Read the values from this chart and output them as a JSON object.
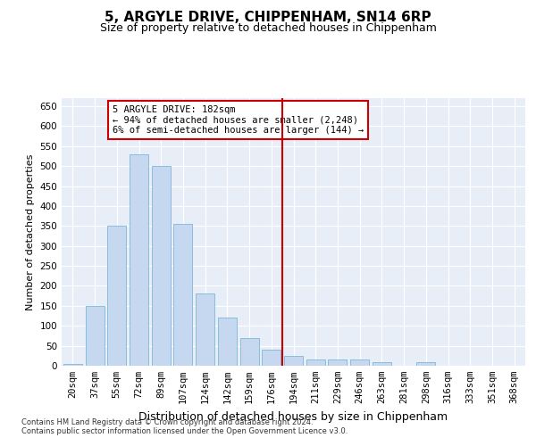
{
  "title": "5, ARGYLE DRIVE, CHIPPENHAM, SN14 6RP",
  "subtitle": "Size of property relative to detached houses in Chippenham",
  "xlabel": "Distribution of detached houses by size in Chippenham",
  "ylabel": "Number of detached properties",
  "categories": [
    "20sqm",
    "37sqm",
    "55sqm",
    "72sqm",
    "89sqm",
    "107sqm",
    "124sqm",
    "142sqm",
    "159sqm",
    "176sqm",
    "194sqm",
    "211sqm",
    "229sqm",
    "246sqm",
    "263sqm",
    "281sqm",
    "298sqm",
    "316sqm",
    "333sqm",
    "351sqm",
    "368sqm"
  ],
  "values": [
    5,
    150,
    350,
    530,
    500,
    355,
    180,
    120,
    70,
    40,
    25,
    15,
    15,
    15,
    10,
    0,
    10,
    0,
    0,
    0,
    0
  ],
  "bar_color": "#c5d8f0",
  "bar_edge_color": "#7db8d8",
  "vline_color": "#cc0000",
  "annotation_text": "5 ARGYLE DRIVE: 182sqm\n← 94% of detached houses are smaller (2,248)\n6% of semi-detached houses are larger (144) →",
  "annotation_box_color": "#ffffff",
  "annotation_box_edge": "#cc0000",
  "ylim": [
    0,
    670
  ],
  "yticks": [
    0,
    50,
    100,
    150,
    200,
    250,
    300,
    350,
    400,
    450,
    500,
    550,
    600,
    650
  ],
  "bg_color": "#e8eef8",
  "grid_color": "#ffffff",
  "footer1": "Contains HM Land Registry data © Crown copyright and database right 2024.",
  "footer2": "Contains public sector information licensed under the Open Government Licence v3.0.",
  "title_fontsize": 11,
  "subtitle_fontsize": 9,
  "xlabel_fontsize": 9,
  "ylabel_fontsize": 8,
  "tick_fontsize": 7.5,
  "annot_fontsize": 7.5
}
